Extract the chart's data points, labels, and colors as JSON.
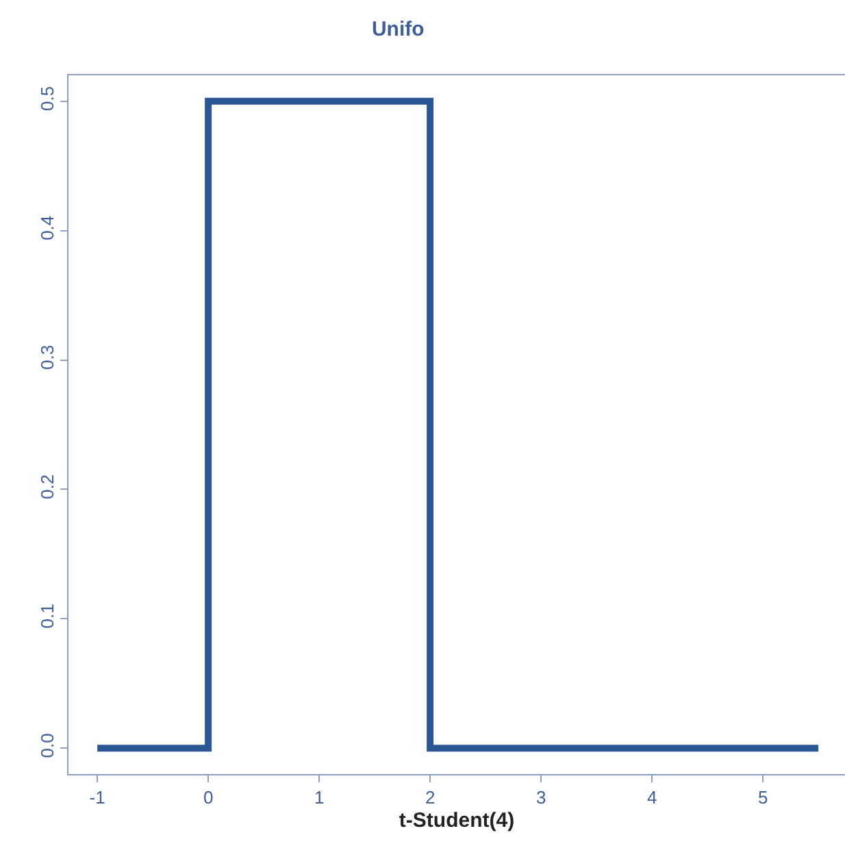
{
  "chart_data": {
    "type": "line",
    "title": "Unifo",
    "xlabel": "t-Student(4)",
    "x": [
      -1,
      0,
      0,
      2,
      2,
      5.5
    ],
    "series": [
      {
        "color": "#2b5797",
        "values": [
          0,
          0,
          0.5,
          0.5,
          0,
          0
        ]
      }
    ],
    "xlim": [
      -1.26,
      5.74
    ],
    "xticks": [
      -1,
      0,
      1,
      2,
      3,
      4,
      5
    ],
    "ylim": [
      -0.02,
      0.52
    ],
    "yticks": [
      {
        "value": 0,
        "label": "0.0"
      },
      0.1,
      0.2,
      0.3,
      0.4,
      0.5
    ],
    "marker": "none",
    "line_style": "solid"
  }
}
